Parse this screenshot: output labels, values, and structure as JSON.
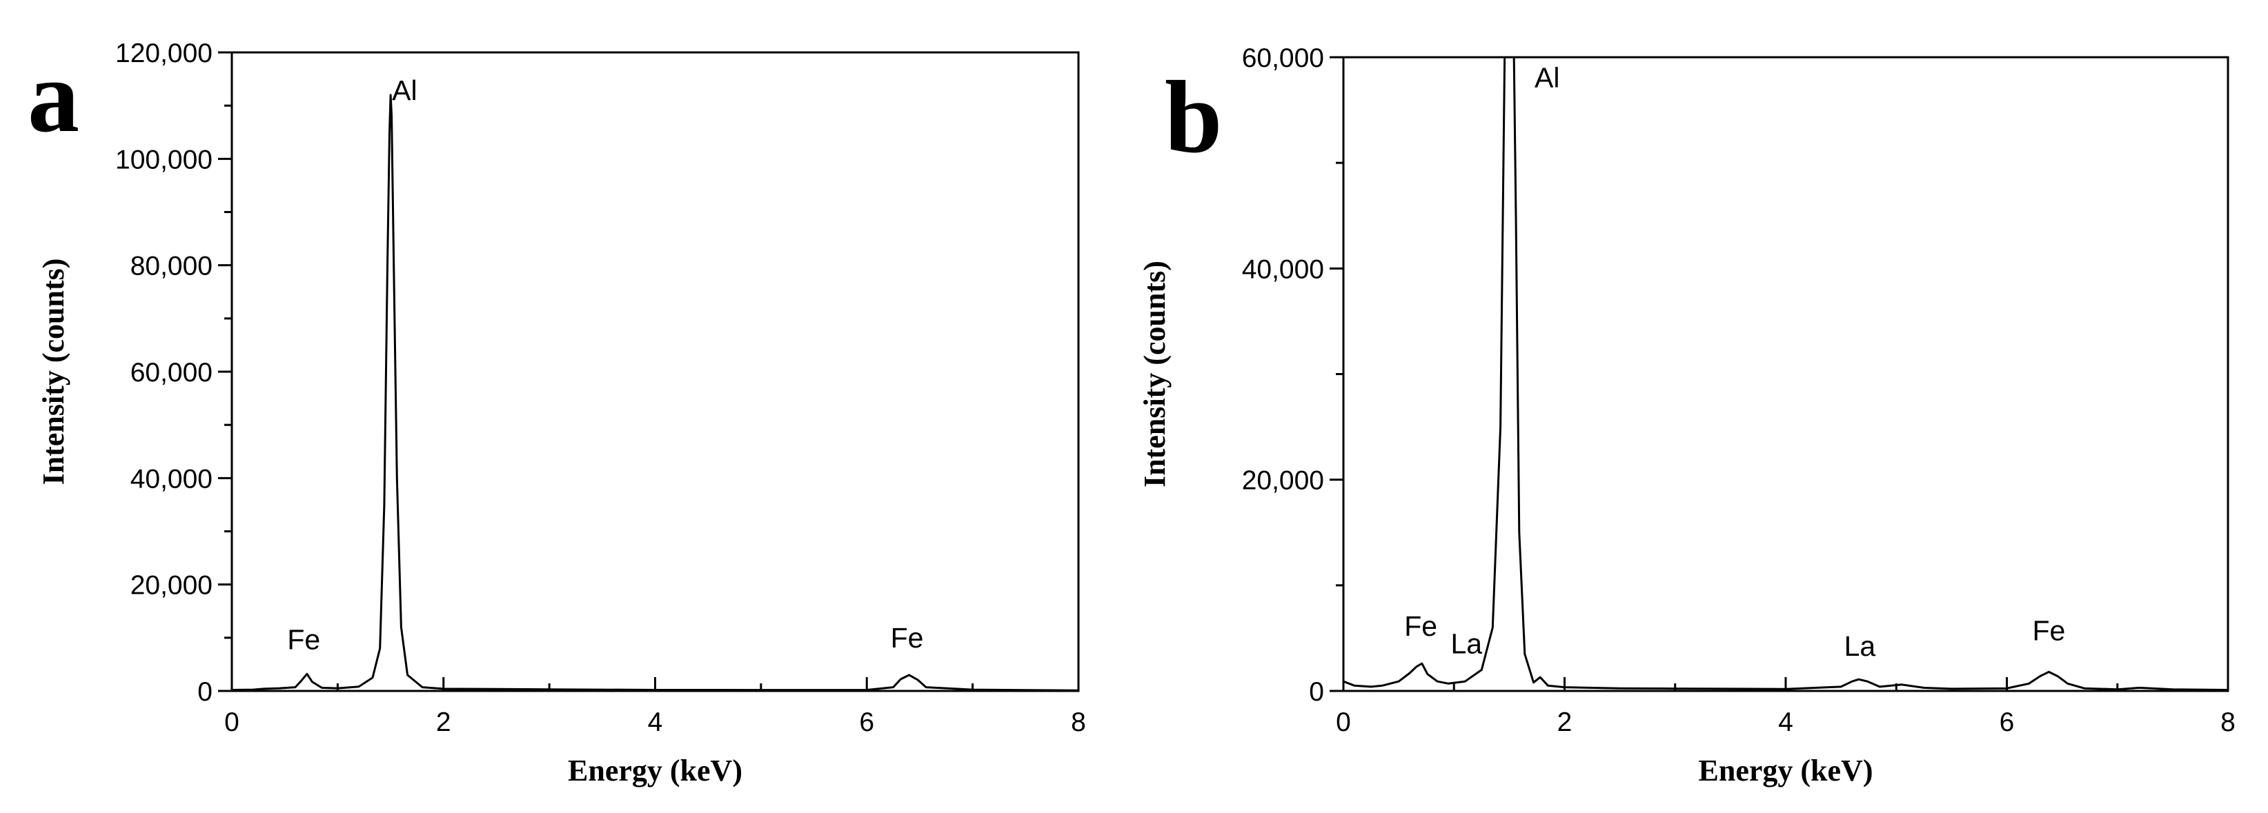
{
  "chart_data": [
    {
      "type": "line",
      "panel": "a",
      "xlabel": "Energy (keV)",
      "ylabel": "Intensity (counts)",
      "xlim": [
        0,
        8
      ],
      "ylim": [
        0,
        120000
      ],
      "xticks": [
        0,
        2,
        4,
        6,
        8
      ],
      "yticks": [
        0,
        20000,
        40000,
        60000,
        80000,
        100000,
        120000
      ],
      "ytick_labels": [
        "0",
        "20,000",
        "40,000",
        "60,000",
        "80,000",
        "100,000",
        "120,000"
      ],
      "grid": false,
      "annotations": [
        {
          "text": "Fe",
          "x": 0.68,
          "y": 5500
        },
        {
          "text": "Al",
          "x": 1.58,
          "y": 110000
        },
        {
          "text": "Fe",
          "x": 6.38,
          "y": 5800
        }
      ],
      "series": [
        {
          "x": [
            0.0,
            0.2,
            0.3,
            0.45,
            0.6,
            0.66,
            0.71,
            0.76,
            0.85,
            1.0,
            1.2,
            1.33,
            1.4,
            1.44,
            1.47,
            1.49,
            1.5,
            1.51,
            1.53,
            1.56,
            1.6,
            1.66,
            1.8,
            2.0,
            2.5,
            3.0,
            4.0,
            5.0,
            6.0,
            6.25,
            6.32,
            6.4,
            6.48,
            6.56,
            7.0,
            7.5,
            8.0
          ],
          "y": [
            200,
            250,
            400,
            500,
            700,
            2000,
            3200,
            1700,
            600,
            500,
            800,
            2500,
            8000,
            35000,
            80000,
            105000,
            112000,
            108000,
            80000,
            40000,
            12000,
            3000,
            700,
            400,
            350,
            300,
            200,
            180,
            200,
            700,
            2200,
            3000,
            2100,
            700,
            250,
            150,
            100
          ]
        }
      ]
    },
    {
      "type": "line",
      "panel": "b",
      "xlabel": "Energy (keV)",
      "ylabel": "Intensity (counts)",
      "xlim": [
        0,
        8
      ],
      "ylim": [
        0,
        60000
      ],
      "xticks": [
        0,
        2,
        4,
        6,
        8
      ],
      "yticks": [
        0,
        20000,
        40000,
        60000
      ],
      "ytick_labels": [
        "0",
        "20,000",
        "40,000",
        "60,000"
      ],
      "grid": false,
      "annotations": [
        {
          "text": "Fe",
          "x": 0.7,
          "y": 4300
        },
        {
          "text": "La",
          "x": 1.05,
          "y": 2900
        },
        {
          "text": "Al",
          "x": 1.78,
          "y": 56500
        },
        {
          "text": "La",
          "x": 4.67,
          "y": 2400
        },
        {
          "text": "Fe",
          "x": 6.38,
          "y": 3900
        }
      ],
      "series": [
        {
          "x": [
            0.0,
            0.1,
            0.25,
            0.35,
            0.5,
            0.6,
            0.66,
            0.71,
            0.76,
            0.85,
            0.95,
            1.1,
            1.25,
            1.35,
            1.42,
            1.46,
            1.48,
            1.5,
            1.52,
            1.54,
            1.56,
            1.59,
            1.64,
            1.72,
            1.78,
            1.85,
            2.0,
            2.5,
            3.0,
            3.5,
            4.0,
            4.5,
            4.6,
            4.66,
            4.74,
            4.85,
            5.05,
            5.25,
            5.5,
            6.0,
            6.2,
            6.3,
            6.38,
            6.46,
            6.55,
            6.7,
            7.0,
            7.2,
            7.5,
            8.0
          ],
          "y": [
            900,
            500,
            400,
            500,
            900,
            1700,
            2300,
            2600,
            1600,
            900,
            700,
            900,
            2000,
            6000,
            25000,
            62000,
            68000,
            66000,
            63000,
            62000,
            45000,
            15000,
            3500,
            800,
            1300,
            500,
            350,
            250,
            220,
            200,
            180,
            400,
            900,
            1100,
            900,
            400,
            600,
            300,
            200,
            250,
            700,
            1400,
            1800,
            1400,
            700,
            250,
            150,
            300,
            150,
            100
          ]
        }
      ]
    }
  ]
}
